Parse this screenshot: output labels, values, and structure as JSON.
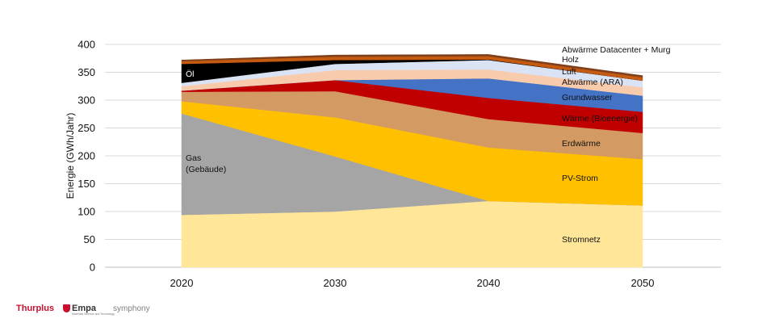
{
  "chart_data": {
    "type": "area",
    "stacked": true,
    "x": [
      "2020",
      "2030",
      "2040",
      "2050"
    ],
    "ylabel": "Energie (GWh/Jahr)",
    "ylim": [
      0,
      400
    ],
    "yticks": [
      0,
      50,
      100,
      150,
      200,
      250,
      300,
      350,
      400
    ],
    "grid": true,
    "series": [
      {
        "name": "Stromnetz",
        "color": "#FFE699",
        "values": [
          94,
          100,
          119,
          111
        ]
      },
      {
        "name": "Gas (Gebäude)",
        "color": "#A5A5A5",
        "values": [
          182,
          99,
          0,
          0
        ]
      },
      {
        "name": "PV-Strom",
        "color": "#FFC000",
        "values": [
          22,
          70,
          96,
          83
        ]
      },
      {
        "name": "Erdwärme",
        "color": "#D49A63",
        "values": [
          17,
          47,
          51,
          47
        ]
      },
      {
        "name": "Wärme (Bioenergie)",
        "color": "#C00000",
        "values": [
          2,
          20,
          38,
          38
        ]
      },
      {
        "name": "Grundwasser",
        "color": "#4472C4",
        "values": [
          0,
          0,
          35,
          29
        ]
      },
      {
        "name": "Abwärme (ARA)",
        "color": "#F8CBAD",
        "values": [
          8,
          18,
          16,
          15
        ]
      },
      {
        "name": "Luft",
        "color": "#DAE3F3",
        "values": [
          6,
          11,
          17,
          12
        ]
      },
      {
        "name": "Öl",
        "color": "#000000",
        "values": [
          34,
          7,
          1,
          0
        ]
      },
      {
        "name": "Holz",
        "color": "#C55A11",
        "values": [
          5,
          6,
          6,
          6
        ]
      },
      {
        "name": "Abwärme Datacenter + Murg",
        "color": "#7F3F1A",
        "values": [
          2,
          3,
          3,
          3
        ]
      }
    ]
  },
  "series_labels": {
    "oel": "Öl",
    "gas_line1": "Gas",
    "gas_line2": "(Gebäude)",
    "datacenter": "Abwärme Datacenter + Murg",
    "holz": "Holz",
    "luft": "Luft",
    "ara": "Abwärme (ARA)",
    "grundwasser": "Grundwasser",
    "bio": "Wärme (Bioenergie)",
    "erdwaerme": "Erdwärme",
    "pv": "PV-Strom",
    "stromnetz": "Stromnetz"
  },
  "footer": {
    "thurplus": "Thurplus",
    "empa": "Empa",
    "empa_sub": "Materials Science and Technology",
    "symphony": "symphony"
  },
  "colors": {
    "thurplus": "#C8102E",
    "symphony": "#7F7F7F",
    "grid": "#D9D9D9"
  }
}
